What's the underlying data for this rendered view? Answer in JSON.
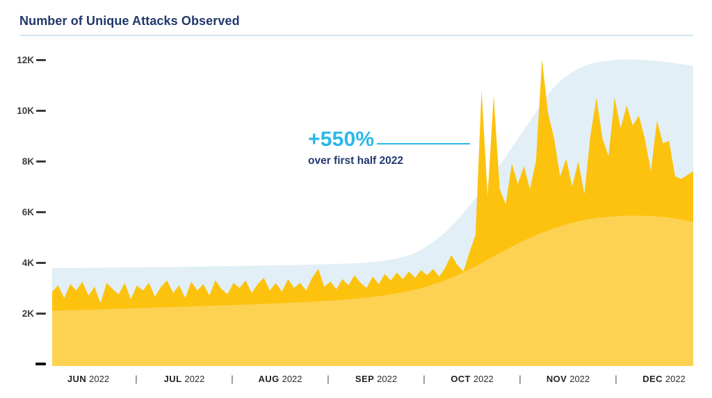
{
  "chart_data": {
    "type": "area",
    "title": "Number of Unique Attacks Observed",
    "annotation": {
      "headline": "+550%",
      "subtext": "over first half 2022"
    },
    "y_axis": {
      "ticks": [
        {
          "label": "12K",
          "value": 12000
        },
        {
          "label": "10K",
          "value": 10000
        },
        {
          "label": "8K",
          "value": 8000
        },
        {
          "label": "6K",
          "value": 6000
        },
        {
          "label": "4K",
          "value": 4000
        },
        {
          "label": "2K",
          "value": 2000
        },
        {
          "label": "",
          "value": 0
        }
      ],
      "ylim": [
        0,
        12600
      ]
    },
    "x_axis": {
      "separator": "|",
      "months": [
        {
          "month": "JUN",
          "year": "2022"
        },
        {
          "month": "JUL",
          "year": "2022"
        },
        {
          "month": "AUG",
          "year": "2022"
        },
        {
          "month": "SEP",
          "year": "2022"
        },
        {
          "month": "OCT",
          "year": "2022"
        },
        {
          "month": "NOV",
          "year": "2022"
        },
        {
          "month": "DEC",
          "year": "2022"
        }
      ]
    },
    "colors": {
      "upper_envelope": "#e2eff6",
      "daily_attacks": "#fcc20e",
      "smoothed_baseline": "#fdd253",
      "accent_cyan": "#2ab7e9",
      "navy_text": "#21386e",
      "title_underline": "#cbe7f3"
    },
    "series": [
      {
        "name": "upper-envelope",
        "style": "smooth",
        "color": "#e2eff6",
        "x_frac": [
          0,
          0.081,
          0.19,
          0.298,
          0.407,
          0.483,
          0.526,
          0.569,
          0.613,
          0.656,
          0.7,
          0.743,
          0.786,
          0.83,
          0.873,
          0.916,
          0.96,
          1.0
        ],
        "values": [
          3780,
          3800,
          3830,
          3870,
          3920,
          3990,
          4110,
          4420,
          5200,
          6400,
          7900,
          9500,
          11000,
          11750,
          11980,
          12000,
          11900,
          11760
        ]
      },
      {
        "name": "daily-attacks",
        "style": "jagged",
        "color": "#fcc20e",
        "values": [
          2850,
          3100,
          2600,
          3150,
          2900,
          3250,
          2700,
          3050,
          2400,
          3200,
          2950,
          2750,
          3200,
          2550,
          3100,
          2900,
          3200,
          2650,
          3050,
          3300,
          2800,
          3100,
          2600,
          3250,
          2900,
          3150,
          2700,
          3300,
          2950,
          2750,
          3200,
          3000,
          3300,
          2800,
          3150,
          3400,
          2900,
          3200,
          2850,
          3350,
          3000,
          3200,
          2900,
          3400,
          3750,
          3050,
          3250,
          2950,
          3350,
          3100,
          3500,
          3200,
          3000,
          3450,
          3150,
          3550,
          3300,
          3600,
          3350,
          3650,
          3400,
          3700,
          3500,
          3750,
          3450,
          3800,
          4300,
          3900,
          3650,
          4400,
          5100,
          10800,
          6600,
          10600,
          6900,
          6300,
          7900,
          7100,
          7800,
          6900,
          8000,
          12000,
          9900,
          8900,
          7400,
          8100,
          7000,
          8000,
          6700,
          9000,
          10500,
          8900,
          8200,
          10500,
          9300,
          10200,
          9400,
          9800,
          8900,
          7600,
          9600,
          8700,
          8800,
          7400,
          7300,
          7450,
          7600
        ]
      },
      {
        "name": "smoothed-baseline",
        "style": "smooth",
        "color": "#fdd253",
        "x_frac": [
          0,
          0.081,
          0.19,
          0.298,
          0.407,
          0.483,
          0.526,
          0.569,
          0.613,
          0.656,
          0.7,
          0.743,
          0.786,
          0.83,
          0.873,
          0.916,
          0.96,
          1.0
        ],
        "values": [
          2100,
          2160,
          2250,
          2340,
          2460,
          2600,
          2740,
          2950,
          3300,
          3800,
          4400,
          4950,
          5380,
          5680,
          5820,
          5850,
          5780,
          5600
        ]
      }
    ]
  }
}
